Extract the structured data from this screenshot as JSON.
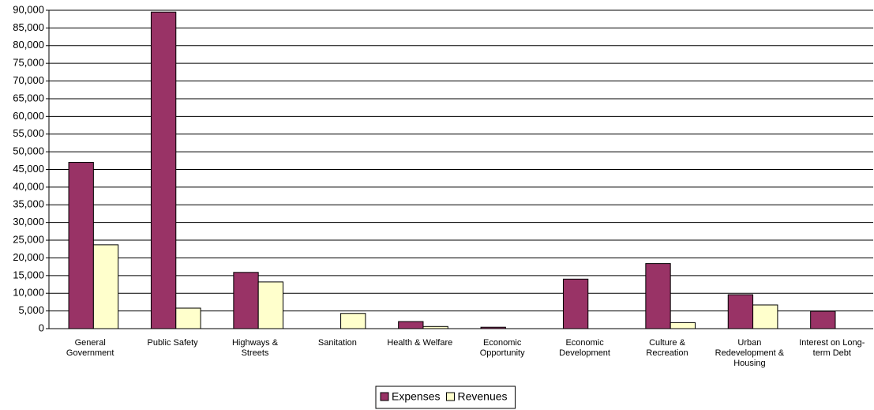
{
  "chart_data": {
    "type": "bar",
    "categories": [
      "General Government",
      "Public Safety",
      "Highways & Streets",
      "Sanitation",
      "Health & Welfare",
      "Economic Opportunity",
      "Economic Development",
      "Culture & Recreation",
      "Urban Redevelopment & Housing",
      "Interest on Long-term Debt"
    ],
    "series": [
      {
        "name": "Expenses",
        "color": "#993366",
        "values": [
          47000,
          89500,
          15900,
          0,
          2000,
          400,
          14000,
          18400,
          9600,
          4900
        ]
      },
      {
        "name": "Revenues",
        "color": "#ffffcc",
        "values": [
          23700,
          5800,
          13200,
          4300,
          600,
          0,
          0,
          1700,
          6700,
          0
        ]
      }
    ],
    "ylim": [
      0,
      90000
    ],
    "yticks": [
      0,
      {
        "value": 5000,
        "label": "5,000"
      },
      {
        "value": 10000,
        "label": "10,000"
      },
      {
        "value": 15000,
        "label": "15,000"
      },
      {
        "value": 20000,
        "label": "20,000"
      },
      {
        "value": 25000,
        "label": "25,000"
      },
      {
        "value": 30000,
        "label": "30,000"
      },
      {
        "value": 35000,
        "label": "35,000"
      },
      {
        "value": 40000,
        "label": "40,000"
      },
      {
        "value": 45000,
        "label": "45,000"
      },
      {
        "value": 50000,
        "label": "50,000"
      },
      {
        "value": 55000,
        "label": "55,000"
      },
      {
        "value": 60000,
        "label": "60,000"
      },
      {
        "value": 65000,
        "label": "65,000"
      },
      {
        "value": 70000,
        "label": "70,000"
      },
      {
        "value": 75000,
        "label": "75,000"
      },
      {
        "value": 80000,
        "label": "80,000"
      },
      {
        "value": 85000,
        "label": "85,000"
      },
      {
        "value": 90000,
        "label": "90,000"
      }
    ],
    "grid": true,
    "legend": "bottom"
  }
}
